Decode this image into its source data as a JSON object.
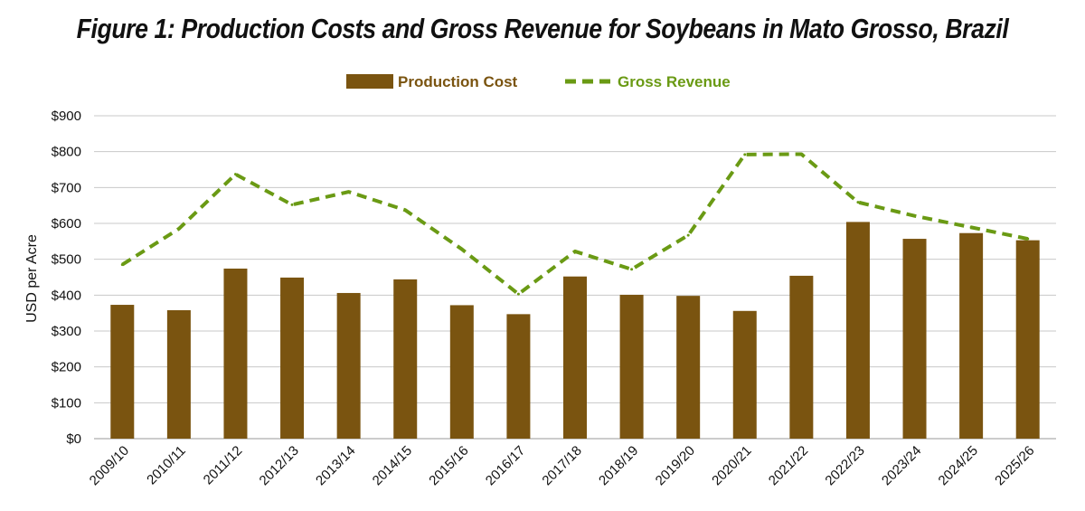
{
  "chart_data": {
    "type": "bar",
    "title": "Figure 1: Production Costs and Gross Revenue for Soybeans in Mato Grosso, Brazil",
    "ylabel": "USD per Acre",
    "xlabel": "",
    "ylim": [
      0,
      900
    ],
    "yticks": [
      "$0",
      "$100",
      "$200",
      "$300",
      "$400",
      "$500",
      "$600",
      "$700",
      "$800",
      "$900"
    ],
    "grid": true,
    "legend_position": "top-center",
    "categories": [
      "2009/10",
      "2010/11",
      "2011/12",
      "2012/13",
      "2013/14",
      "2014/15",
      "2015/16",
      "2016/17",
      "2017/18",
      "2018/19",
      "2019/20",
      "2020/21",
      "2021/22",
      "2022/23",
      "2023/24",
      "2024/25",
      "2025/26"
    ],
    "series": [
      {
        "name": "Production Cost",
        "kind": "bar",
        "color": "#7a5410",
        "values": [
          373,
          358,
          474,
          449,
          406,
          444,
          372,
          347,
          452,
          401,
          398,
          356,
          454,
          604,
          557,
          573,
          553
        ]
      },
      {
        "name": "Gross Revenue",
        "kind": "line",
        "style": "dashed",
        "color": "#6a9a14",
        "values": [
          485,
          585,
          737,
          652,
          688,
          637,
          528,
          403,
          522,
          472,
          567,
          792,
          793,
          659,
          621,
          589,
          557
        ]
      }
    ]
  }
}
